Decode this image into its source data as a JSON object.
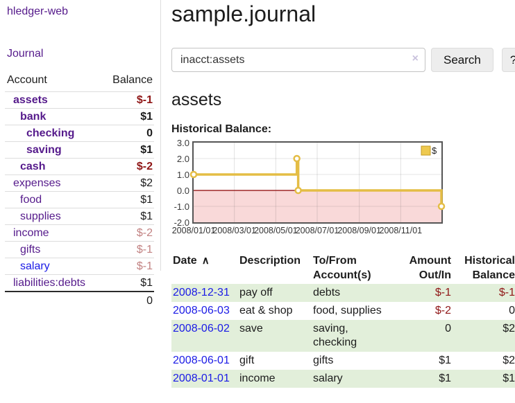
{
  "app": {
    "brand": "hledger-web"
  },
  "sidebar": {
    "journal_label": "Journal",
    "headers": {
      "account": "Account",
      "balance": "Balance"
    },
    "accounts": [
      {
        "name": "assets",
        "depth": 1,
        "bold": true,
        "link_color": "purple",
        "balance": "$-1",
        "balance_style": "neg"
      },
      {
        "name": "bank",
        "depth": 2,
        "bold": true,
        "link_color": "purple",
        "balance": "$1",
        "balance_style": ""
      },
      {
        "name": "checking",
        "depth": 3,
        "bold": true,
        "link_color": "purple",
        "balance": "0",
        "balance_style": ""
      },
      {
        "name": "saving",
        "depth": 3,
        "bold": true,
        "link_color": "purple",
        "balance": "$1",
        "balance_style": ""
      },
      {
        "name": "cash",
        "depth": 2,
        "bold": true,
        "link_color": "purple",
        "balance": "$-2",
        "balance_style": "neg"
      },
      {
        "name": "expenses",
        "depth": 1,
        "bold": false,
        "link_color": "purple",
        "balance": "$2",
        "balance_style": ""
      },
      {
        "name": "food",
        "depth": 2,
        "bold": false,
        "link_color": "purple",
        "balance": "$1",
        "balance_style": ""
      },
      {
        "name": "supplies",
        "depth": 2,
        "bold": false,
        "link_color": "purple",
        "balance": "$1",
        "balance_style": ""
      },
      {
        "name": "income",
        "depth": 1,
        "bold": false,
        "link_color": "purple",
        "balance": "$-2",
        "balance_style": "neg-soft"
      },
      {
        "name": "gifts",
        "depth": 2,
        "bold": false,
        "link_color": "purple",
        "balance": "$-1",
        "balance_style": "neg-soft"
      },
      {
        "name": "salary",
        "depth": 2,
        "bold": false,
        "link_color": "blue",
        "balance": "$-1",
        "balance_style": "neg-soft"
      },
      {
        "name": "liabilities:debts",
        "depth": 1,
        "bold": false,
        "link_color": "purple",
        "balance": "$1",
        "balance_style": ""
      }
    ],
    "total": "0"
  },
  "main": {
    "title": "sample.journal",
    "search": {
      "value": "inacct:assets",
      "clear_icon": "×",
      "button_label": "Search",
      "help_label": "?"
    },
    "section_title": "assets"
  },
  "chart_data": {
    "type": "line",
    "title": "Historical Balance:",
    "legend_label": "$",
    "legend_position": "top-right",
    "grid": true,
    "x_range_days": [
      0,
      365
    ],
    "x_ticks": [
      {
        "label": "2008/01/01",
        "day": 0
      },
      {
        "label": "2008/03/01",
        "day": 60
      },
      {
        "label": "2008/05/01",
        "day": 121
      },
      {
        "label": "2008/07/01",
        "day": 182
      },
      {
        "label": "2008/09/01",
        "day": 244
      },
      {
        "label": "2008/11/01",
        "day": 305
      }
    ],
    "y_ticks": [
      3,
      2,
      1,
      0,
      -1,
      -2
    ],
    "ylim": [
      -2,
      3
    ],
    "series": [
      {
        "name": "$",
        "points": [
          {
            "date": "2008-01-01",
            "value": 1
          },
          {
            "date": "2008-06-01",
            "value": 2
          },
          {
            "date": "2008-06-02",
            "value": 2
          },
          {
            "date": "2008-06-03",
            "value": 0
          },
          {
            "date": "2008-12-31",
            "value": -1
          }
        ]
      }
    ],
    "step_vertices": [
      {
        "d": 0,
        "v": 1
      },
      {
        "d": 152,
        "v": 1
      },
      {
        "d": 152,
        "v": 2
      },
      {
        "d": 154,
        "v": 2
      },
      {
        "d": 154,
        "v": 0
      },
      {
        "d": 365,
        "v": 0
      },
      {
        "d": 365,
        "v": -1
      }
    ],
    "markers": [
      {
        "d": 0,
        "v": 1
      },
      {
        "d": 152,
        "v": 2
      },
      {
        "d": 154,
        "v": 0
      },
      {
        "d": 365,
        "v": -1
      }
    ],
    "colors": {
      "line": "#e4bd45",
      "legend_fill": "#eec94f",
      "legend_border": "#c39a26",
      "negative_region": "#f9d9d9",
      "zero_line": "#8b0000"
    }
  },
  "register": {
    "headers": {
      "date": "Date",
      "sort_indicator": "∧",
      "description": "Description",
      "accounts": "To/From Account(s)",
      "amount": "Amount Out/In",
      "balance": "Historical Balance"
    },
    "rows": [
      {
        "date": "2008-12-31",
        "description": "pay off",
        "accounts": "debts",
        "amount": "$-1",
        "amount_style": "neg",
        "balance": "$-1",
        "balance_style": "neg",
        "shaded": true
      },
      {
        "date": "2008-06-03",
        "description": "eat & shop",
        "accounts": "food, supplies",
        "amount": "$-2",
        "amount_style": "neg",
        "balance": "0",
        "balance_style": "",
        "shaded": false
      },
      {
        "date": "2008-06-02",
        "description": "save",
        "accounts": "saving, checking",
        "amount": "0",
        "amount_style": "",
        "balance": "$2",
        "balance_style": "",
        "shaded": true
      },
      {
        "date": "2008-06-01",
        "description": "gift",
        "accounts": "gifts",
        "amount": "$1",
        "amount_style": "",
        "balance": "$2",
        "balance_style": "",
        "shaded": false
      },
      {
        "date": "2008-01-01",
        "description": "income",
        "accounts": "salary",
        "amount": "$1",
        "amount_style": "",
        "balance": "$1",
        "balance_style": "",
        "shaded": true
      }
    ]
  },
  "colors": {
    "link_purple": "#551a8b",
    "link_blue": "#1a1ae6",
    "negative_strong": "#8f1616",
    "negative_soft": "#c28282",
    "shaded_row_green": "#e2efda",
    "divider_gray": "#dddddd"
  }
}
